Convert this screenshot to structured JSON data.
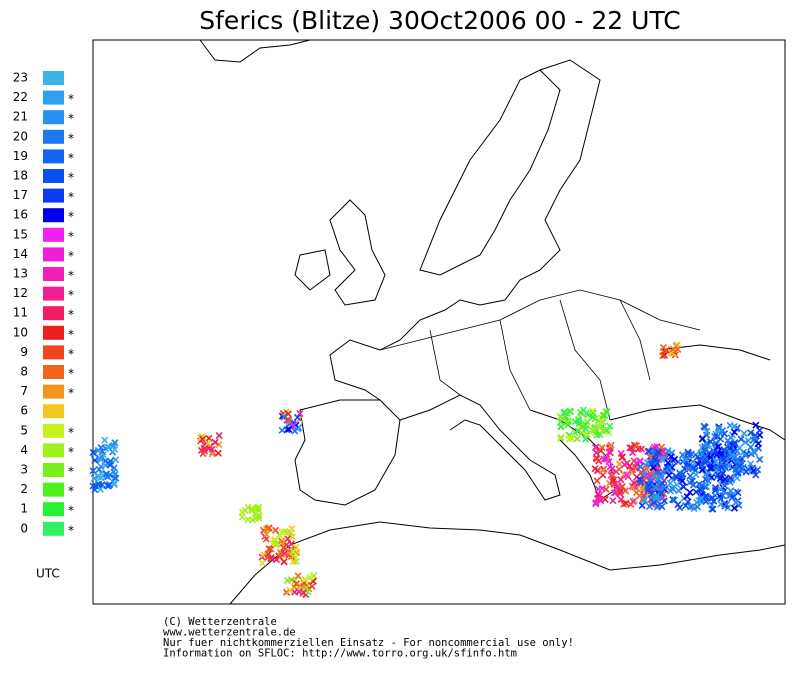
{
  "header": {
    "title": "Sferics (Blitze) 30Oct2006 00 - 22 UTC"
  },
  "legend": {
    "marker": "*",
    "unit": "UTC",
    "items": [
      {
        "hour": "23",
        "color": "#3cb4e6",
        "active": false
      },
      {
        "hour": "22",
        "color": "#32a0f0",
        "active": true
      },
      {
        "hour": "21",
        "color": "#2890f0",
        "active": true
      },
      {
        "hour": "20",
        "color": "#1e78f0",
        "active": true
      },
      {
        "hour": "19",
        "color": "#1464f0",
        "active": true
      },
      {
        "hour": "18",
        "color": "#0a50f0",
        "active": true
      },
      {
        "hour": "17",
        "color": "#0a3cf0",
        "active": true
      },
      {
        "hour": "16",
        "color": "#0000f0",
        "active": true
      },
      {
        "hour": "15",
        "color": "#f020f0",
        "active": true
      },
      {
        "hour": "14",
        "color": "#f020d8",
        "active": true
      },
      {
        "hour": "13",
        "color": "#f020b4",
        "active": true
      },
      {
        "hour": "12",
        "color": "#f02090",
        "active": true
      },
      {
        "hour": "11",
        "color": "#f01e64",
        "active": true
      },
      {
        "hour": "10",
        "color": "#f01e1e",
        "active": true
      },
      {
        "hour": "9",
        "color": "#f0461e",
        "active": true
      },
      {
        "hour": "8",
        "color": "#f0641e",
        "active": true
      },
      {
        "hour": "7",
        "color": "#f0961e",
        "active": true
      },
      {
        "hour": "6",
        "color": "#f0c81e",
        "active": false
      },
      {
        "hour": "5",
        "color": "#c8f01e",
        "active": true
      },
      {
        "hour": "4",
        "color": "#a0f01e",
        "active": true
      },
      {
        "hour": "3",
        "color": "#78f01e",
        "active": true
      },
      {
        "hour": "2",
        "color": "#50f01e",
        "active": true
      },
      {
        "hour": "1",
        "color": "#28f032",
        "active": true
      },
      {
        "hour": "0",
        "color": "#32f064",
        "active": true
      }
    ]
  },
  "footer": {
    "lines": [
      "(C) Wetterzentrale",
      "www.wetterzentrale.de",
      "Nur fuer nichtkommerziellen Einsatz - For noncommercial use only!",
      "Information on SFLOC: http://www.torro.org.uk/sfinfo.htm"
    ]
  }
}
